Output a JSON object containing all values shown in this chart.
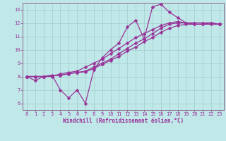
{
  "xlabel": "Windchill (Refroidissement éolien,°C)",
  "bg_color": "#c0e8e8",
  "grid_color": "#a0cccc",
  "line_color": "#993399",
  "spine_color": "#886688",
  "xlim": [
    -0.5,
    23.5
  ],
  "ylim": [
    5.5,
    13.5
  ],
  "xticks": [
    0,
    1,
    2,
    3,
    4,
    5,
    6,
    7,
    8,
    9,
    10,
    11,
    12,
    13,
    14,
    15,
    16,
    17,
    18,
    19,
    20,
    21,
    22,
    23
  ],
  "yticks": [
    6,
    7,
    8,
    9,
    10,
    11,
    12,
    13
  ],
  "series": [
    [
      8.0,
      7.7,
      8.0,
      8.1,
      7.0,
      6.4,
      7.0,
      6.0,
      8.5,
      9.4,
      10.0,
      10.5,
      11.7,
      12.2,
      10.8,
      13.2,
      13.4,
      12.8,
      12.4,
      12.0,
      11.9,
      11.9,
      12.0,
      11.9
    ],
    [
      8.0,
      8.0,
      8.0,
      8.0,
      8.2,
      8.3,
      8.4,
      8.7,
      9.0,
      9.3,
      9.7,
      10.1,
      10.5,
      10.9,
      11.2,
      11.5,
      11.8,
      12.0,
      12.1,
      12.0,
      12.0,
      12.0,
      12.0,
      11.9
    ],
    [
      8.0,
      8.0,
      8.0,
      8.05,
      8.1,
      8.2,
      8.3,
      8.4,
      8.7,
      9.0,
      9.3,
      9.7,
      10.1,
      10.5,
      10.8,
      11.2,
      11.6,
      11.9,
      12.0,
      12.0,
      12.0,
      12.0,
      12.0,
      11.9
    ],
    [
      8.0,
      8.0,
      8.0,
      8.05,
      8.1,
      8.2,
      8.3,
      8.35,
      8.6,
      8.9,
      9.2,
      9.5,
      9.9,
      10.2,
      10.6,
      10.9,
      11.3,
      11.6,
      11.8,
      11.9,
      11.9,
      11.9,
      11.9,
      11.9
    ]
  ],
  "label_fontsize": 5.0,
  "xlabel_fontsize": 5.5,
  "marker_size": 2.5,
  "linewidth": 0.9
}
